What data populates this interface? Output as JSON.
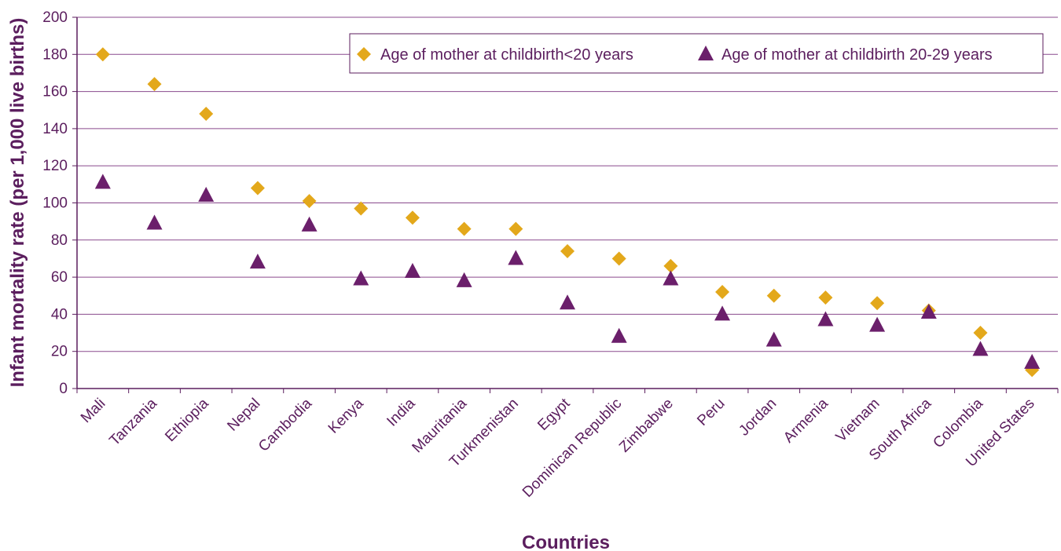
{
  "colors": {
    "accent": "#5b1e5e",
    "series_under20": "#e3a81b",
    "series_20_29": "#6b1f6b",
    "grid": "#8a4a8d"
  },
  "chart_data": {
    "type": "scatter",
    "xlabel": "Countries",
    "ylabel": "Infant mortality rate (per 1,000 live births)",
    "ylim": [
      0,
      200
    ],
    "yticks": [
      0,
      20,
      40,
      60,
      80,
      100,
      120,
      140,
      160,
      180,
      200
    ],
    "grid": true,
    "legend_position": "top-right",
    "categories": [
      "Mali",
      "Tanzania",
      "Ethiopia",
      "Nepal",
      "Cambodia",
      "Kenya",
      "India",
      "Mauritania",
      "Turkmenistan",
      "Egypt",
      "Dominican Republic",
      "Zimbabwe",
      "Peru",
      "Jordan",
      "Armenia",
      "Vietnam",
      "South Africa",
      "Colombia",
      "United States"
    ],
    "series": [
      {
        "name": "Age of mother at childbirth<20 years",
        "marker": "diamond",
        "values": [
          180,
          164,
          148,
          108,
          101,
          97,
          92,
          86,
          86,
          74,
          70,
          66,
          52,
          50,
          49,
          46,
          42,
          30,
          10
        ]
      },
      {
        "name": "Age of mother at childbirth 20-29 years",
        "marker": "triangle",
        "values": [
          111,
          89,
          104,
          68,
          88,
          59,
          63,
          58,
          70,
          46,
          28,
          59,
          40,
          26,
          37,
          34,
          41,
          21,
          14
        ]
      }
    ]
  }
}
